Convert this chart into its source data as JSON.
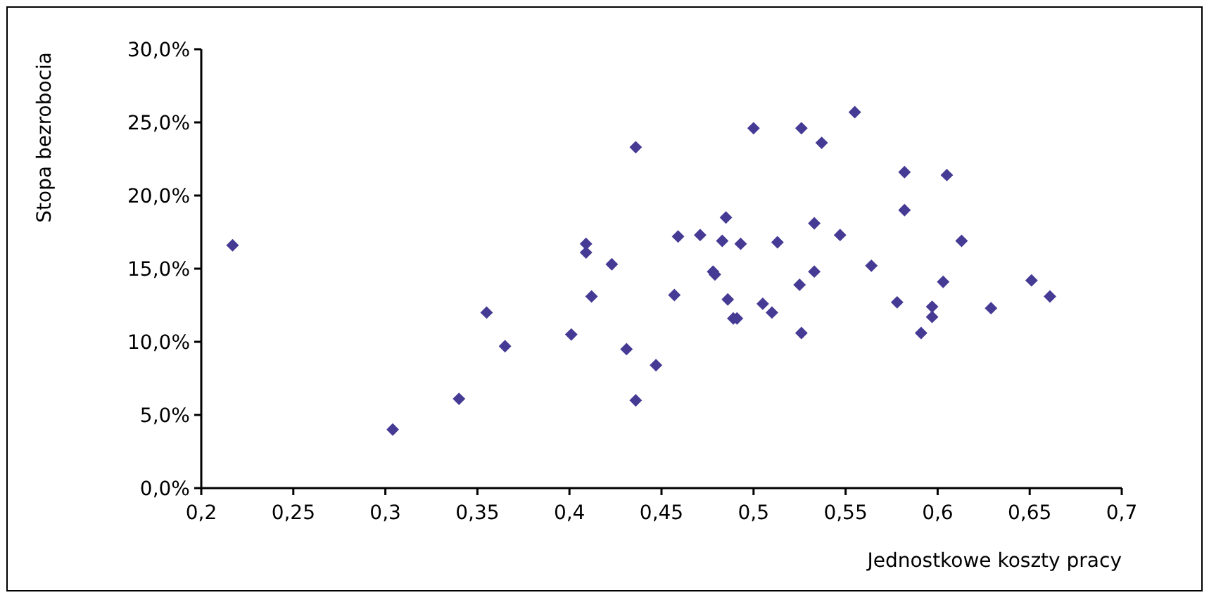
{
  "chart_data": {
    "type": "scatter",
    "xlabel": "Jednostkowe koszty pracy",
    "ylabel": "Stopa bezrobocia",
    "xlim": [
      0.2,
      0.7
    ],
    "xticks": [
      {
        "value": 0.2,
        "label": "0,2"
      },
      {
        "value": 0.25,
        "label": "0,25"
      },
      {
        "value": 0.3,
        "label": "0,3"
      },
      {
        "value": 0.35,
        "label": "0,35"
      },
      {
        "value": 0.4,
        "label": "0,4"
      },
      {
        "value": 0.45,
        "label": "0,45"
      },
      {
        "value": 0.5,
        "label": "0,5"
      },
      {
        "value": 0.55,
        "label": "0,55"
      },
      {
        "value": 0.6,
        "label": "0,6"
      },
      {
        "value": 0.65,
        "label": "0,65"
      },
      {
        "value": 0.7,
        "label": "0,7"
      }
    ],
    "ylim": [
      0,
      30
    ],
    "yticks": [
      {
        "value": 0,
        "label": "0,0%"
      },
      {
        "value": 5,
        "label": "5,0%"
      },
      {
        "value": 10,
        "label": "10,0%"
      },
      {
        "value": 15,
        "label": "15,0%"
      },
      {
        "value": 20,
        "label": "20,0%"
      },
      {
        "value": 25,
        "label": "25,0%"
      },
      {
        "value": 30,
        "label": "30,0%"
      }
    ],
    "marker": "diamond",
    "series": [
      {
        "color": "#453a94",
        "x": [
          0.217,
          0.304,
          0.34,
          0.355,
          0.365,
          0.401,
          0.409,
          0.409,
          0.412,
          0.423,
          0.431,
          0.436,
          0.436,
          0.447,
          0.457,
          0.459,
          0.471,
          0.478,
          0.479,
          0.483,
          0.485,
          0.486,
          0.489,
          0.491,
          0.493,
          0.5,
          0.505,
          0.51,
          0.513,
          0.525,
          0.526,
          0.526,
          0.533,
          0.533,
          0.537,
          0.547,
          0.555,
          0.564,
          0.578,
          0.582,
          0.582,
          0.591,
          0.597,
          0.597,
          0.603,
          0.605,
          0.613,
          0.629,
          0.651,
          0.661
        ],
        "values": [
          16.6,
          4.0,
          6.1,
          12.0,
          9.7,
          10.5,
          16.7,
          16.1,
          13.1,
          15.3,
          9.5,
          23.3,
          6.0,
          8.4,
          13.2,
          17.2,
          17.3,
          14.8,
          14.6,
          16.9,
          18.5,
          12.9,
          11.6,
          11.6,
          16.7,
          24.6,
          12.6,
          12.0,
          16.8,
          13.9,
          10.6,
          24.6,
          18.1,
          14.8,
          23.6,
          17.3,
          25.7,
          15.2,
          12.7,
          21.6,
          19.0,
          10.6,
          12.4,
          11.7,
          14.1,
          21.4,
          16.9,
          12.3,
          14.2,
          13.1
        ]
      }
    ]
  }
}
